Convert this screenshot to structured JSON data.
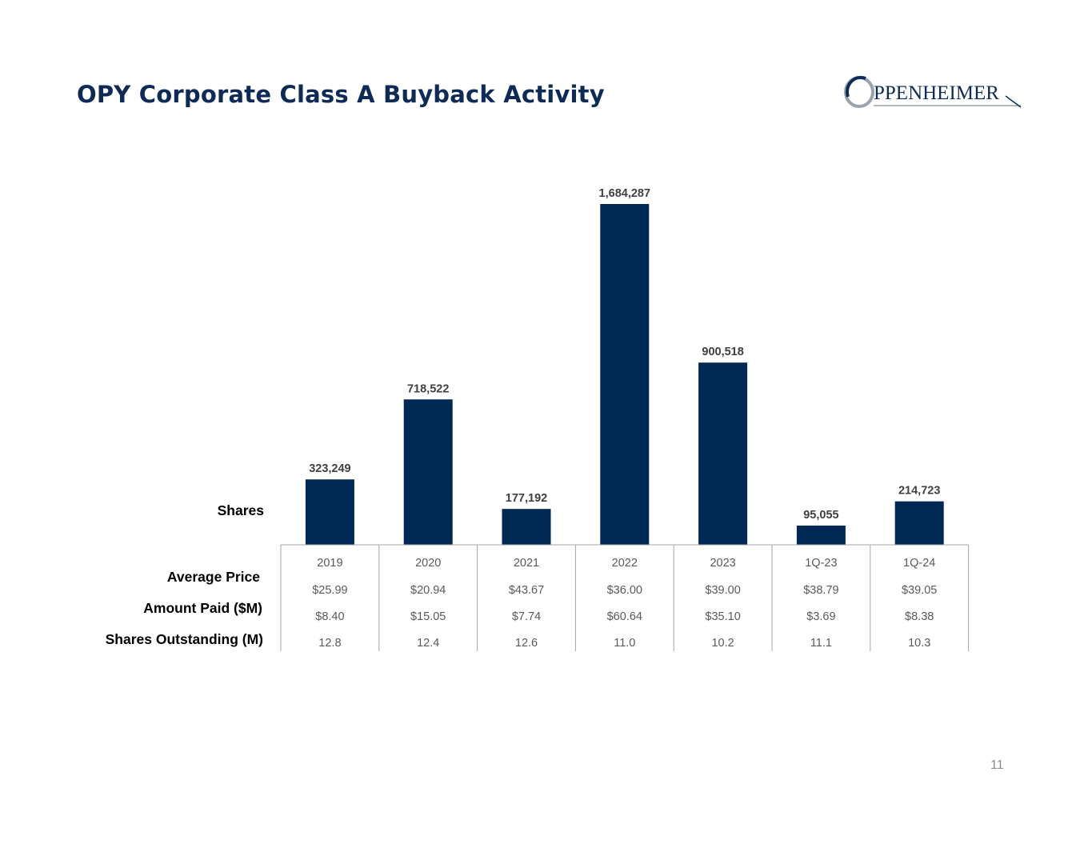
{
  "slide": {
    "title": "OPY Corporate Class A Buyback Activity",
    "page_number": "11"
  },
  "logo": {
    "text": "PPENHEIMER",
    "color": "#0d2b56"
  },
  "row_labels": {
    "shares": "Shares",
    "average_price": "Average Price",
    "amount_paid": "Amount Paid ($M)",
    "shares_outstanding": "Shares Outstanding (M)"
  },
  "colors": {
    "bar": "#002855",
    "title": "#0d2b56",
    "table_text": "#595959",
    "grid": "#a6a6a6"
  },
  "chart_data": {
    "type": "bar",
    "categories": [
      "2019",
      "2020",
      "2021",
      "2022",
      "2023",
      "1Q-23",
      "1Q-24"
    ],
    "values": [
      323249,
      718522,
      177192,
      1684287,
      900518,
      95055,
      214723
    ],
    "data_labels": [
      "323,249",
      "718,522",
      "177,192",
      "1,684,287",
      "900,518",
      "95,055",
      "214,723"
    ],
    "ylim": [
      0,
      1684287
    ],
    "grid": false,
    "table": {
      "average_price": [
        "$25.99",
        "$20.94",
        "$43.67",
        "$36.00",
        "$39.00",
        "$38.79",
        "$39.05"
      ],
      "amount_paid": [
        "$8.40",
        "$15.05",
        "$7.74",
        "$60.64",
        "$35.10",
        "$3.69",
        "$8.38"
      ],
      "shares_outstanding": [
        "12.8",
        "12.4",
        "12.6",
        "11.0",
        "10.2",
        "11.1",
        "10.3"
      ]
    }
  }
}
